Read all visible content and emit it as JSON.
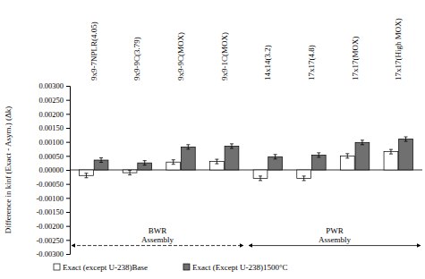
{
  "chart_data": {
    "type": "bar",
    "y_label": "Difference in kinf (Exact - Asym.) (Δk)",
    "categories": [
      "9x9-7NPLR(4.05)",
      "9x9-9C(3.79)",
      "9x9-9C(MOX)",
      "9x9-1C(MOX)",
      "14x14(3.2)",
      "17x17(4.8)",
      "17x17(MOX)",
      "17x17(High MOX)"
    ],
    "series": [
      {
        "name": "Exact (except U-238)Base",
        "color": "#ffffff",
        "values": [
          -0.0002,
          -0.0001,
          0.00028,
          0.0003,
          -0.0003,
          -0.0003,
          0.0005,
          0.00065
        ],
        "errors": [
          8e-05,
          8e-05,
          8e-05,
          8e-05,
          8e-05,
          8e-05,
          8e-05,
          8e-05
        ]
      },
      {
        "name": "Exact (Except U-238)1500°C",
        "color": "#707070",
        "values": [
          0.00035,
          0.00025,
          0.00082,
          0.00085,
          0.00047,
          0.00053,
          0.00098,
          0.0011
        ],
        "errors": [
          8e-05,
          8e-05,
          8e-05,
          8e-05,
          8e-05,
          8e-05,
          8e-05,
          8e-05
        ]
      }
    ],
    "annotations": [
      {
        "text": "BWR Assembly",
        "line_style": "dashed"
      },
      {
        "text": "PWR Assembly",
        "line_style": "solid"
      }
    ],
    "ylim": [
      -0.003,
      0.003
    ],
    "yticks": [
      {
        "value": 0.003,
        "label": "0.00300"
      },
      {
        "value": 0.0025,
        "label": "0.00250"
      },
      {
        "value": 0.002,
        "label": "0.00200"
      },
      {
        "value": 0.0015,
        "label": "0.00150"
      },
      {
        "value": 0.001,
        "label": "0.00100"
      },
      {
        "value": 0.0005,
        "label": "0.00050"
      },
      {
        "value": 0,
        "label": "0.00000"
      },
      {
        "value": -0.0005,
        "label": "-0.00050"
      },
      {
        "value": -0.001,
        "label": "-0.00100"
      },
      {
        "value": -0.0015,
        "label": "-0.00150"
      },
      {
        "value": -0.002,
        "label": "-0.00200"
      },
      {
        "value": -0.0025,
        "label": "-0.00250"
      },
      {
        "value": -0.003,
        "label": "-0.00300"
      }
    ],
    "grid": false,
    "legend": "bottom"
  }
}
